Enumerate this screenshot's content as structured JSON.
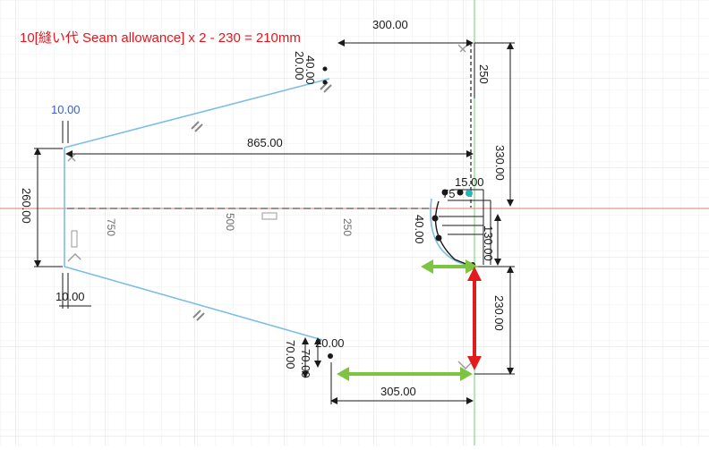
{
  "annotation": {
    "text": "10[縫い代 Seam allowance] x 2 - 230 = 210mm",
    "color": "#e8141b"
  },
  "dimensions": {
    "top_width": "300.00",
    "main_width": "865.00",
    "bottom_width": "305.00",
    "left_height": "260.00",
    "right_upper": "330.00",
    "right_lower": "230.00",
    "top_right_small": "250",
    "left_tick": "10.00",
    "left_bottom_tick": "10.00",
    "mid_small": "15.00",
    "mid_130": "130.00",
    "mid_40": "40.00",
    "mid_75": "75",
    "upper_left_20": "20.00",
    "upper_left_40": "40.00",
    "lower_70": "70.00",
    "lower_70b": "70.00",
    "lower_20": "20.00"
  },
  "axis_labels": [
    "750",
    "500",
    "250"
  ],
  "colors": {
    "grid_minor": "#efefef",
    "grid_major": "#dcdcdc",
    "sketch_line": "#7bbde3",
    "dimension_line": "#1a1a1a",
    "x_axis": "#e07a6f",
    "y_axis": "#6fd06f",
    "green_arrow": "#7dc540",
    "red_arrow": "#e21c1c",
    "constraint_blue": "#3a5fc8"
  }
}
